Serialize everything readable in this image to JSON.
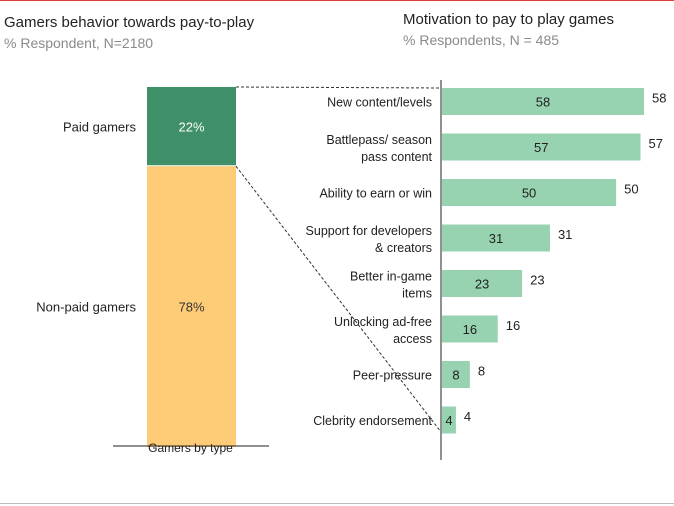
{
  "colors": {
    "paid": "#3f9068",
    "nonpaid": "#fecb76",
    "motivation_bar": "#97d3b0",
    "accent_rule": "#e23b3b"
  },
  "left_panel": {
    "title": "Gamers behavior towards pay-to-play",
    "subtitle": "% Respondent, N=2180"
  },
  "right_panel": {
    "title": "Motivation to pay to play games",
    "subtitle": "% Respondents, N = 485"
  },
  "chart_data": [
    {
      "type": "bar",
      "stacked": true,
      "title": "Gamers behavior towards pay-to-play",
      "subtitle": "% Respondent, N=2180",
      "xlabel": "Gamers by type",
      "ylim": [
        0,
        100
      ],
      "series": [
        {
          "name": "Paid gamers",
          "value": 22,
          "label": "22%",
          "color": "#3f9068"
        },
        {
          "name": "Non-paid gamers",
          "value": 78,
          "label": "78%",
          "color": "#fecb76"
        }
      ]
    },
    {
      "type": "bar",
      "orientation": "horizontal",
      "title": "Motivation to pay to play games",
      "subtitle": "% Respondents, N = 485",
      "xlim": [
        0,
        60
      ],
      "categories": [
        [
          "New content/levels"
        ],
        [
          "Battlepass/ season",
          "pass content"
        ],
        [
          "Ability to earn or win"
        ],
        [
          "Support for developers",
          "& creators"
        ],
        [
          "Better in-game",
          "items"
        ],
        [
          "Unlocking ad-free",
          "access"
        ],
        [
          "Peer-pressure"
        ],
        [
          "Clebrity endorsement"
        ]
      ],
      "values": [
        58,
        57,
        50,
        31,
        23,
        16,
        8,
        4
      ]
    }
  ]
}
